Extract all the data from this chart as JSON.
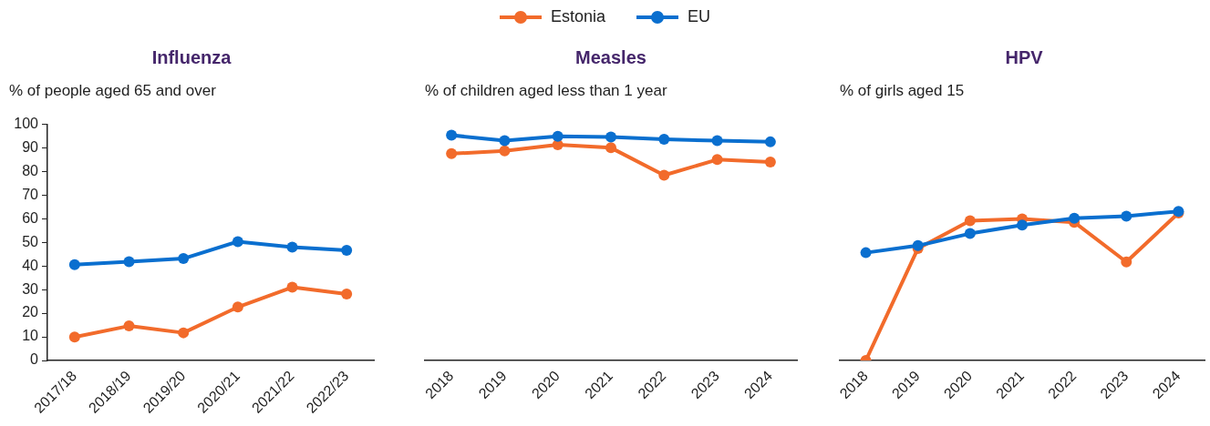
{
  "chart_data": [
    {
      "type": "line",
      "title": "Influenza",
      "subtitle": "% of people aged 65 and over",
      "categories": [
        "2017/18",
        "2018/19",
        "2019/20",
        "2020/21",
        "2021/22",
        "2022/23"
      ],
      "series": [
        {
          "name": "Estonia",
          "color": "#f26b2b",
          "values": [
            9.9,
            14.6,
            11.7,
            22.6,
            31,
            28.1
          ]
        },
        {
          "name": "EU",
          "color": "#0a6fcf",
          "values": [
            40.5,
            41.8,
            43.1,
            50.3,
            48,
            46.6
          ]
        }
      ],
      "ylim": [
        0,
        100
      ],
      "yticks": [
        0,
        10,
        20,
        30,
        40,
        50,
        60,
        70,
        80,
        90,
        100
      ],
      "legend": "top",
      "marker": "circle",
      "line_style": "solid"
    },
    {
      "type": "line",
      "title": "Measles",
      "subtitle": "% of children aged less than 1 year",
      "categories": [
        "2018",
        "2019",
        "2020",
        "2021",
        "2022",
        "2023",
        "2024"
      ],
      "series": [
        {
          "color": "#f26b2b",
          "values": [
            87.5,
            88.7,
            91.3,
            90,
            78.4,
            85,
            84
          ]
        },
        {
          "color": "#0a6fcf",
          "values": [
            95.3,
            93,
            94.9,
            94.6,
            93.6,
            93,
            92.5
          ]
        }
      ],
      "ylim": [
        0,
        100
      ],
      "yticks": [
        0,
        10,
        20,
        30,
        40,
        50,
        60,
        70,
        80,
        90,
        100
      ],
      "tick_labels": "x",
      "marker": "circle",
      "line_style": "solid"
    },
    {
      "type": "line",
      "title": "HPV",
      "subtitle": "% of girls aged 15",
      "categories": [
        "2018",
        "2019",
        "2020",
        "2021",
        "2022",
        "2023",
        "2024"
      ],
      "series": [
        {
          "color": "#f26b2b",
          "values": [
            0,
            47.4,
            59.1,
            59.9,
            58.5,
            41.7,
            62.4
          ]
        },
        {
          "color": "#0a6fcf",
          "values": [
            45.6,
            48.6,
            53.7,
            57.3,
            60.2,
            61.1,
            63.1
          ]
        }
      ],
      "ylim": [
        0,
        100
      ],
      "yticks": [
        0,
        10,
        20,
        30,
        40,
        50,
        60,
        70,
        80,
        90,
        100
      ],
      "tick_labels": "x",
      "marker": "circle",
      "line_style": "solid"
    }
  ]
}
